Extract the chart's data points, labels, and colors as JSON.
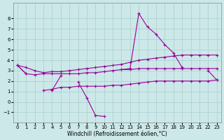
{
  "x_all": [
    0,
    1,
    2,
    3,
    4,
    5,
    6,
    7,
    8,
    9,
    10,
    11,
    12,
    13,
    14,
    15,
    16,
    17,
    18,
    19,
    20,
    21,
    22,
    23
  ],
  "line_spike": [
    3.5,
    2.7,
    null,
    null,
    1.1,
    2.5,
    null,
    1.9,
    0.4,
    -1.3,
    -1.4,
    null,
    3.1,
    3.2,
    8.5,
    7.2,
    6.5,
    5.5,
    4.7,
    3.3,
    null,
    null,
    3.0,
    2.1
  ],
  "line_upper": [
    3.5,
    3.3,
    3.0,
    2.8,
    2.9,
    2.9,
    3.0,
    3.1,
    3.2,
    3.3,
    3.4,
    3.5,
    3.6,
    3.8,
    4.0,
    4.1,
    4.2,
    4.3,
    4.4,
    4.5,
    4.5,
    4.5,
    4.5,
    4.5
  ],
  "line_mid": [
    3.5,
    2.7,
    2.6,
    2.7,
    2.7,
    2.7,
    2.7,
    2.7,
    2.8,
    2.8,
    2.9,
    3.0,
    3.1,
    3.1,
    3.2,
    3.2,
    3.2,
    3.2,
    3.2,
    3.2,
    3.2,
    3.2,
    3.2,
    3.2
  ],
  "line_lower": [
    null,
    null,
    null,
    1.1,
    1.2,
    1.4,
    1.4,
    1.5,
    1.5,
    1.5,
    1.5,
    1.6,
    1.6,
    1.7,
    1.8,
    1.9,
    2.0,
    2.0,
    2.0,
    2.0,
    2.0,
    2.0,
    2.0,
    2.1
  ],
  "bg_color": "#cce8e8",
  "line_color": "#990099",
  "grid_color": "#aacece",
  "xlabel": "Windchill (Refroidissement éolien,°C)",
  "xlim": [
    -0.5,
    23.5
  ],
  "ylim": [
    -2.0,
    9.5
  ],
  "yticks": [
    -1,
    0,
    1,
    2,
    3,
    4,
    5,
    6,
    7,
    8
  ],
  "xticks": [
    0,
    1,
    2,
    3,
    4,
    5,
    6,
    7,
    8,
    9,
    10,
    11,
    12,
    13,
    14,
    15,
    16,
    17,
    18,
    19,
    20,
    21,
    22,
    23
  ]
}
